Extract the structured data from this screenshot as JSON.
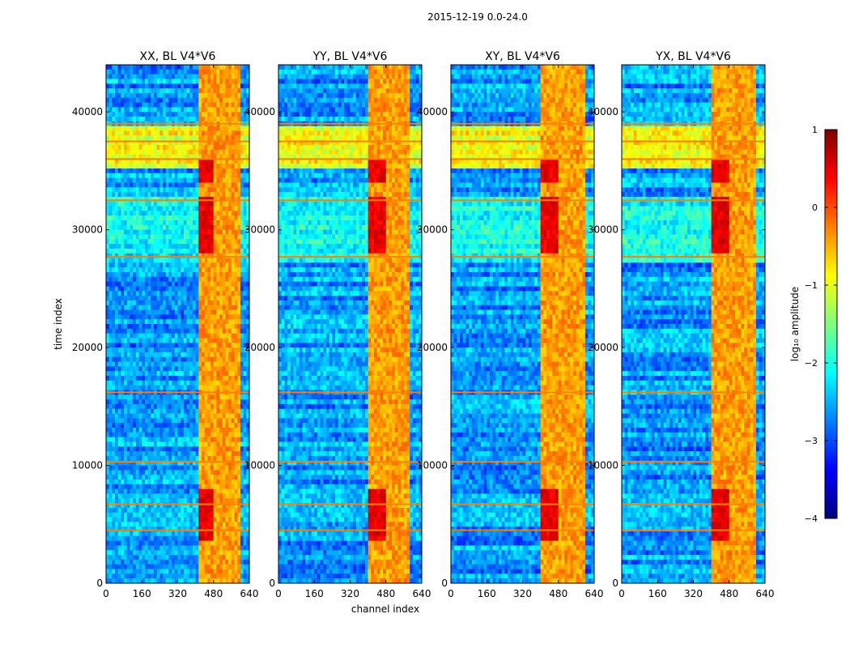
{
  "figure": {
    "suptitle": "2015-12-19 0.0-24.0",
    "xlabel": "channel index",
    "ylabel": "time index"
  },
  "colorbar": {
    "label": "log₁₀ amplitude",
    "range": [
      -4,
      1
    ],
    "ticks": [
      "1",
      "0",
      "−1",
      "−2",
      "−3",
      "−4"
    ],
    "colormap": "jet",
    "colors": [
      "#00007f",
      "#0000ff",
      "#007fff",
      "#00ffff",
      "#7fff7f",
      "#ffff00",
      "#ff7f00",
      "#ff0000",
      "#7f0000"
    ]
  },
  "chart_data": [
    {
      "type": "heatmap",
      "title": "XX, BL V4*V6",
      "xlim": [
        0,
        640
      ],
      "ylim": [
        0,
        44000
      ],
      "xticks": [
        "0",
        "160",
        "320",
        "480",
        "640"
      ],
      "yticks": [
        "0",
        "10000",
        "20000",
        "30000",
        "40000"
      ],
      "bright_channel_band": [
        410,
        600
      ],
      "bright_time_band": [
        35000,
        39000
      ],
      "rfi_rows": [
        4500,
        6700,
        10300,
        16200,
        27700,
        32500,
        36000,
        37500,
        39000
      ]
    },
    {
      "type": "heatmap",
      "title": "YY, BL V4*V6",
      "xlim": [
        0,
        640
      ],
      "ylim": [
        0,
        44000
      ],
      "xticks": [
        "0",
        "160",
        "320",
        "480",
        "640"
      ],
      "yticks": [
        "0",
        "10000",
        "20000",
        "30000",
        "40000"
      ],
      "bright_channel_band": [
        400,
        590
      ],
      "bright_time_band": [
        35000,
        39000
      ],
      "rfi_rows": [
        4500,
        6700,
        10300,
        16200,
        27700,
        32500,
        36000,
        37500,
        39000
      ]
    },
    {
      "type": "heatmap",
      "title": "XY, BL V4*V6",
      "xlim": [
        0,
        640
      ],
      "ylim": [
        0,
        44000
      ],
      "xticks": [
        "0",
        "160",
        "320",
        "480",
        "640"
      ],
      "yticks": [
        "0",
        "10000",
        "20000",
        "30000",
        "40000"
      ],
      "bright_channel_band": [
        400,
        600
      ],
      "bright_time_band": [
        35000,
        39000
      ],
      "rfi_rows": [
        4500,
        6700,
        10300,
        16200,
        27700,
        32500,
        36000,
        37500,
        39000
      ]
    },
    {
      "type": "heatmap",
      "title": "YX, BL V4*V6",
      "xlim": [
        0,
        640
      ],
      "ylim": [
        0,
        44000
      ],
      "xticks": [
        "0",
        "160",
        "320",
        "480",
        "640"
      ],
      "yticks": [
        "0",
        "10000",
        "20000",
        "30000",
        "40000"
      ],
      "bright_channel_band": [
        400,
        600
      ],
      "bright_time_band": [
        35000,
        39000
      ],
      "rfi_rows": [
        4500,
        6700,
        10300,
        16200,
        27700,
        32500,
        36000,
        37500,
        39000
      ]
    }
  ]
}
